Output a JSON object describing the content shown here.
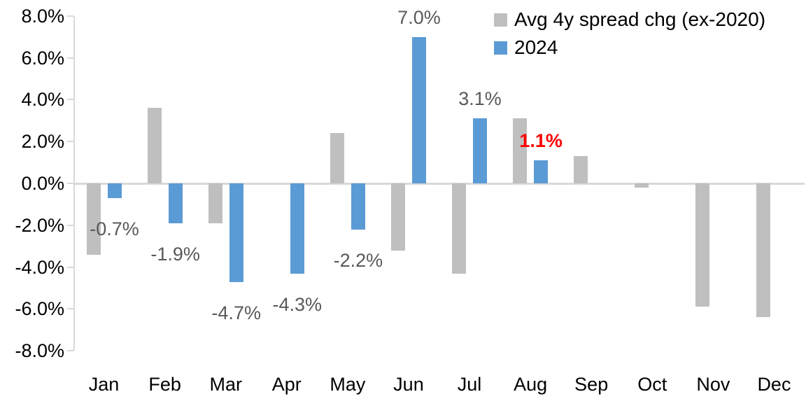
{
  "chart_data": {
    "type": "bar",
    "title": "",
    "categories": [
      "Jan",
      "Feb",
      "Mar",
      "Apr",
      "May",
      "Jun",
      "Jul",
      "Aug",
      "Sep",
      "Oct",
      "Nov",
      "Dec"
    ],
    "series": [
      {
        "name": "Avg 4y spread chg (ex-2020)",
        "color": "#bfbfbf",
        "values": [
          -3.4,
          3.6,
          -1.9,
          0.0,
          2.4,
          -3.2,
          -4.3,
          3.1,
          1.3,
          -0.2,
          -5.9,
          -6.4
        ]
      },
      {
        "name": "2024",
        "color": "#5b9bd5",
        "values": [
          -0.7,
          -1.9,
          -4.7,
          -4.3,
          -2.2,
          7.0,
          3.1,
          1.1,
          null,
          null,
          null,
          null
        ],
        "data_labels": [
          "-0.7%",
          "-1.9%",
          "-4.7%",
          "-4.3%",
          "-2.2%",
          "7.0%",
          "3.1%",
          "1.1%",
          null,
          null,
          null,
          null
        ],
        "label_color": "#595959",
        "highlight_index": 7,
        "highlight_color": "#ff0000",
        "highlight_bold": true
      }
    ],
    "y_axis": {
      "min": -8,
      "max": 8,
      "step": 2,
      "tick_labels": [
        "8.0%",
        "6.0%",
        "4.0%",
        "2.0%",
        "0.0%",
        "-2.0%",
        "-4.0%",
        "-6.0%",
        "-8.0%"
      ]
    },
    "legend": {
      "position": "top-right"
    },
    "grid": false,
    "axis_color": "#d9d9d9",
    "ylim": [
      -8,
      8
    ]
  }
}
